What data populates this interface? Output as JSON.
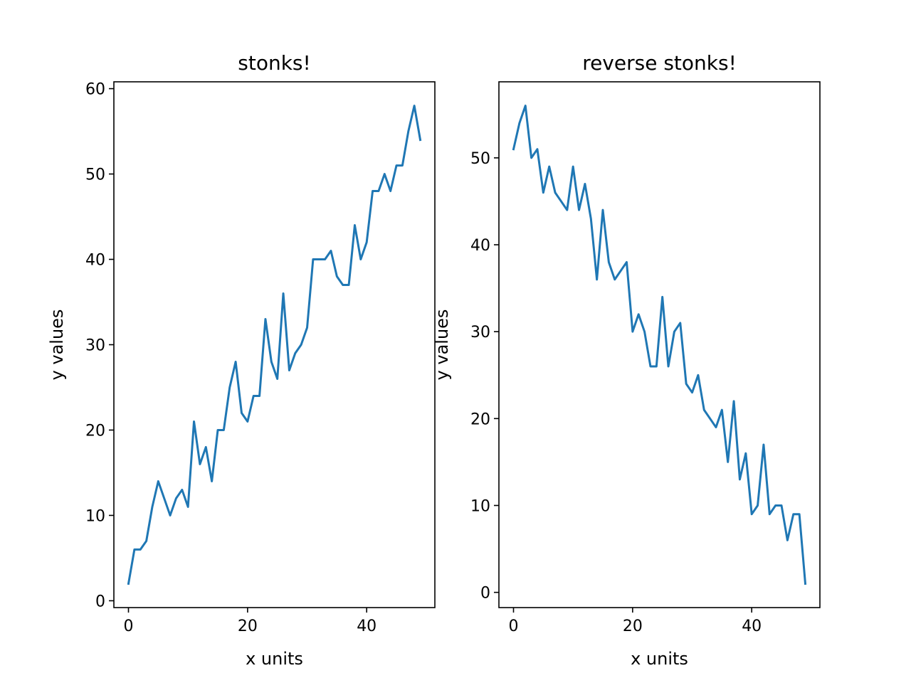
{
  "chart_data": [
    {
      "type": "line",
      "title": "stonks!",
      "xlabel": "x units",
      "ylabel": "y values",
      "xlim": [
        -2.45,
        51.45
      ],
      "ylim": [
        -0.8,
        60.8
      ],
      "xticks": [
        0,
        20,
        40
      ],
      "yticks": [
        0,
        10,
        20,
        30,
        40,
        50,
        60
      ],
      "grid": false,
      "series": [
        {
          "color": "#1f77b4",
          "x": [
            0,
            1,
            2,
            3,
            4,
            5,
            6,
            7,
            8,
            9,
            10,
            11,
            12,
            13,
            14,
            15,
            16,
            17,
            18,
            19,
            20,
            21,
            22,
            23,
            24,
            25,
            26,
            27,
            28,
            29,
            30,
            31,
            32,
            33,
            34,
            35,
            36,
            37,
            38,
            39,
            40,
            41,
            42,
            43,
            44,
            45,
            46,
            47,
            48,
            49
          ],
          "y": [
            2,
            6,
            6,
            7,
            11,
            14,
            12,
            10,
            12,
            13,
            11,
            21,
            16,
            18,
            14,
            20,
            20,
            25,
            28,
            22,
            21,
            24,
            24,
            33,
            28,
            26,
            36,
            27,
            29,
            30,
            32,
            40,
            40,
            40,
            41,
            38,
            37,
            37,
            44,
            40,
            42,
            48,
            48,
            50,
            48,
            51,
            51,
            55,
            58,
            54
          ]
        }
      ]
    },
    {
      "type": "line",
      "title": "reverse stonks!",
      "xlabel": "x units",
      "ylabel": "y values",
      "xlim": [
        -2.45,
        51.45
      ],
      "ylim": [
        -1.75,
        58.75
      ],
      "xticks": [
        0,
        20,
        40
      ],
      "yticks": [
        0,
        10,
        20,
        30,
        40,
        50
      ],
      "grid": false,
      "series": [
        {
          "color": "#1f77b4",
          "x": [
            0,
            1,
            2,
            3,
            4,
            5,
            6,
            7,
            8,
            9,
            10,
            11,
            12,
            13,
            14,
            15,
            16,
            17,
            18,
            19,
            20,
            21,
            22,
            23,
            24,
            25,
            26,
            27,
            28,
            29,
            30,
            31,
            32,
            33,
            34,
            35,
            36,
            37,
            38,
            39,
            40,
            41,
            42,
            43,
            44,
            45,
            46,
            47,
            48,
            49
          ],
          "y": [
            51,
            54,
            56,
            50,
            51,
            46,
            49,
            46,
            45,
            44,
            49,
            44,
            47,
            43,
            36,
            44,
            38,
            36,
            37,
            38,
            30,
            32,
            30,
            26,
            26,
            34,
            26,
            30,
            31,
            24,
            23,
            25,
            21,
            20,
            19,
            21,
            15,
            22,
            13,
            16,
            9,
            10,
            17,
            9,
            10,
            10,
            6,
            9,
            9,
            1
          ]
        }
      ]
    }
  ]
}
